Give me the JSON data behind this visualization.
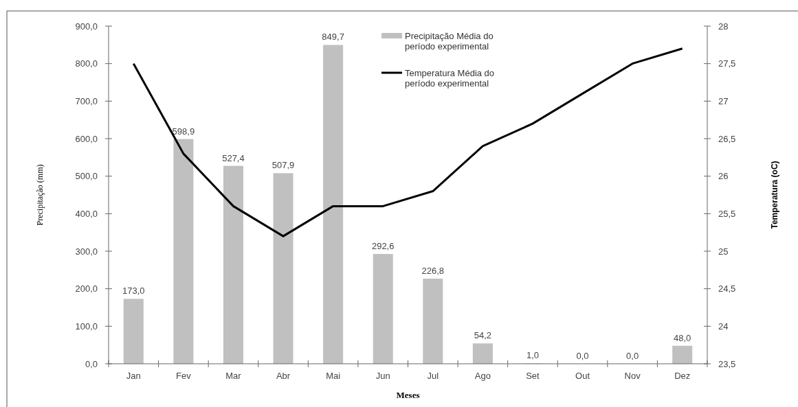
{
  "chart_data": {
    "type": "bar",
    "xlabel": "Meses",
    "ylabel": "Precipitação (mm)",
    "y2label": "Temperatura (oC)",
    "categories": [
      "Jan",
      "Fev",
      "Mar",
      "Abr",
      "Mai",
      "Jun",
      "Jul",
      "Ago",
      "Set",
      "Out",
      "Nov",
      "Dez"
    ],
    "series": [
      {
        "name": "Precipitação Média do período experimental",
        "color": "#c0c0c0",
        "values": [
          173.0,
          598.9,
          527.4,
          507.9,
          849.7,
          292.6,
          226.8,
          54.2,
          1.0,
          0.0,
          0.0,
          48.0
        ],
        "value_labels": [
          "173,0",
          "598,9",
          "527,4",
          "507,9",
          "849,7",
          "292,6",
          "226,8",
          "54,2",
          "1,0",
          "0,0",
          "0,0",
          "48,0"
        ]
      },
      {
        "name": "Temperatura Média do período experimental",
        "type": "line",
        "axis": "y2",
        "color": "#000000",
        "values": [
          27.5,
          26.3,
          25.6,
          25.2,
          25.6,
          25.6,
          25.8,
          26.4,
          26.7,
          27.1,
          27.5,
          27.7
        ]
      }
    ],
    "ylim": [
      0,
      900
    ],
    "yticks": [
      {
        "value": 0,
        "label": "0,0"
      },
      {
        "value": 100,
        "label": "100,0"
      },
      {
        "value": 200,
        "label": "200,0"
      },
      {
        "value": 300,
        "label": "300,0"
      },
      {
        "value": 400,
        "label": "400,0"
      },
      {
        "value": 500,
        "label": "500,0"
      },
      {
        "value": 600,
        "label": "600,0"
      },
      {
        "value": 700,
        "label": "700,0"
      },
      {
        "value": 800,
        "label": "800,0"
      },
      {
        "value": 900,
        "label": "900,0"
      }
    ],
    "y2lim": [
      23.5,
      28
    ],
    "y2ticks": [
      {
        "value": 23.5,
        "label": "23,5"
      },
      24,
      {
        "value": 24.5,
        "label": "24,5"
      },
      25,
      {
        "value": 25.5,
        "label": "25,5"
      },
      26,
      {
        "value": 26.5,
        "label": "26,5"
      },
      27,
      {
        "value": 27.5,
        "label": "27,5"
      },
      28
    ],
    "legend": "top",
    "grid": false,
    "marker": "none",
    "line_style": "solid"
  }
}
